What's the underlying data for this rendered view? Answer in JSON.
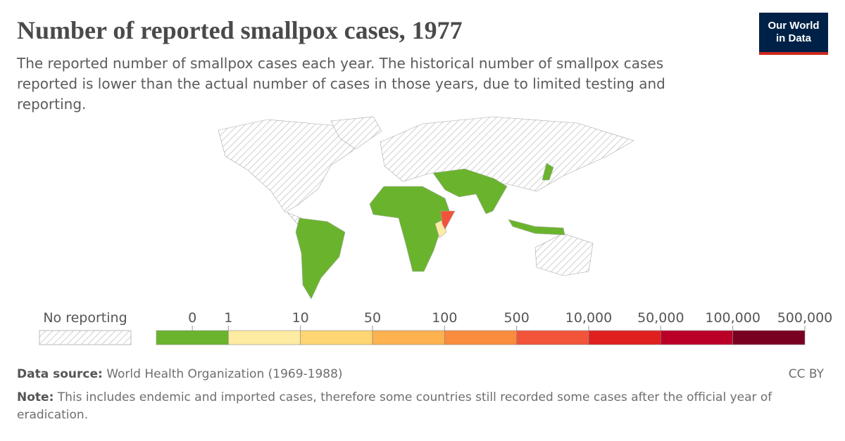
{
  "chart_data": {
    "type": "choropleth",
    "title": "Number of reported smallpox cases, 1977",
    "subtitle": "The reported number of smallpox cases each year. The historical number of smallpox cases reported is lower than the actual number of cases in those years, due to limited testing and reporting.",
    "logo": [
      "Our World",
      "in Data"
    ],
    "no_data_label": "No reporting",
    "legend_ticks": [
      0,
      1,
      10,
      50,
      100,
      500,
      {
        "value": 10000,
        "label": "10,000"
      },
      {
        "value": 50000,
        "label": "50,000"
      },
      {
        "value": 100000,
        "label": "100,000"
      },
      {
        "value": 500000,
        "label": "500,000"
      }
    ],
    "legend_colors": [
      "#6ab42d",
      "#feeba2",
      "#fed573",
      "#fdb14f",
      "#fa8c3d",
      "#f2543a",
      "#e0201f",
      "#bb0028",
      "#7a0021"
    ],
    "source_label": "Data source:",
    "source": "World Health Organization (1969-1988)",
    "license": "CC BY",
    "note_label": "Note:",
    "note": "This includes endemic and imported cases, therefore some countries still recorded some cases after the official year of eradication."
  }
}
